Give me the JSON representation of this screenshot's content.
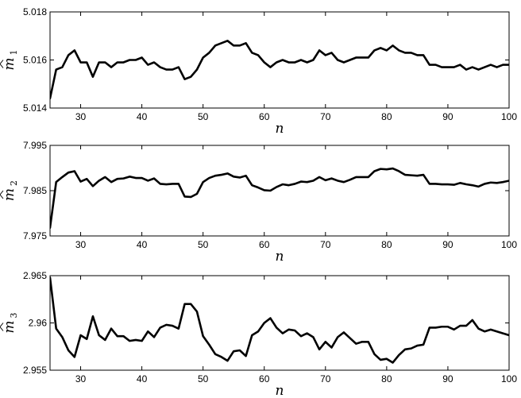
{
  "chart_data": [
    {
      "type": "line",
      "xlabel": "n",
      "ylabel": {
        "base": "m",
        "sub": "1",
        "hat": true
      },
      "xlim": [
        25,
        100
      ],
      "ylim": [
        5.014,
        5.018
      ],
      "xticks": [
        "30",
        "40",
        "50",
        "60",
        "70",
        "80",
        "90",
        "100"
      ],
      "yticks": [
        "5.014",
        "5.016",
        "5.018"
      ],
      "grid": false,
      "x_start": 25,
      "values": [
        5.0144,
        5.0156,
        5.0157,
        5.0162,
        5.0164,
        5.0159,
        5.0159,
        5.0153,
        5.0159,
        5.0159,
        5.0157,
        5.0159,
        5.0159,
        5.016,
        5.016,
        5.0161,
        5.0158,
        5.0159,
        5.0157,
        5.0156,
        5.0156,
        5.0157,
        5.0152,
        5.0153,
        5.0156,
        5.0161,
        5.0163,
        5.0166,
        5.0167,
        5.0168,
        5.0166,
        5.0166,
        5.0167,
        5.0163,
        5.0162,
        5.0159,
        5.0157,
        5.0159,
        5.016,
        5.0159,
        5.0159,
        5.016,
        5.0159,
        5.016,
        5.0164,
        5.0162,
        5.0163,
        5.016,
        5.0159,
        5.016,
        5.0161,
        5.0161,
        5.0161,
        5.0164,
        5.0165,
        5.0164,
        5.0166,
        5.0164,
        5.0163,
        5.0163,
        5.0162,
        5.0162,
        5.0158,
        5.0158,
        5.0157,
        5.0157,
        5.0157,
        5.0158,
        5.0156,
        5.0157,
        5.0156,
        5.0157,
        5.0158,
        5.0157,
        5.0158,
        5.0158,
        5.0157
      ]
    },
    {
      "type": "line",
      "xlabel": "n",
      "ylabel": {
        "base": "m",
        "sub": "2",
        "hat": true
      },
      "xlim": [
        25,
        100
      ],
      "ylim": [
        7.975,
        7.995
      ],
      "xticks": [
        "30",
        "40",
        "50",
        "60",
        "70",
        "80",
        "90",
        "100"
      ],
      "yticks": [
        "7.975",
        "7.985",
        "7.995"
      ],
      "grid": false,
      "x_start": 25,
      "values": [
        7.9768,
        7.9869,
        7.988,
        7.989,
        7.9893,
        7.987,
        7.9876,
        7.986,
        7.9872,
        7.988,
        7.9869,
        7.9876,
        7.9877,
        7.9881,
        7.9878,
        7.9878,
        7.9872,
        7.9877,
        7.9865,
        7.9864,
        7.9865,
        7.9865,
        7.9837,
        7.9836,
        7.9843,
        7.9869,
        7.9878,
        7.9883,
        7.9885,
        7.9888,
        7.9881,
        7.9879,
        7.9883,
        7.9862,
        7.9857,
        7.9851,
        7.985,
        7.9858,
        7.9864,
        7.9862,
        7.9865,
        7.987,
        7.9869,
        7.9872,
        7.988,
        7.9873,
        7.9877,
        7.9872,
        7.9869,
        7.9874,
        7.988,
        7.988,
        7.988,
        7.9893,
        7.9898,
        7.9897,
        7.9899,
        7.9893,
        7.9885,
        7.9884,
        7.9883,
        7.9885,
        7.9865,
        7.9865,
        7.9864,
        7.9864,
        7.9863,
        7.9867,
        7.9864,
        7.9862,
        7.9859,
        7.9865,
        7.9868,
        7.9867,
        7.9869,
        7.9872,
        7.9868
      ]
    },
    {
      "type": "line",
      "xlabel": "n",
      "ylabel": {
        "base": "m",
        "sub": "3",
        "hat": true
      },
      "xlim": [
        25,
        100
      ],
      "ylim": [
        2.955,
        2.965
      ],
      "xticks": [
        "30",
        "40",
        "50",
        "60",
        "70",
        "80",
        "90",
        "100"
      ],
      "yticks": [
        "2.955",
        "2.96",
        "2.965"
      ],
      "grid": false,
      "x_start": 25,
      "values": [
        2.9648,
        2.9594,
        2.9585,
        2.9571,
        2.9564,
        2.9587,
        2.9583,
        2.9607,
        2.9587,
        2.9582,
        2.9594,
        2.9586,
        2.9586,
        2.9581,
        2.9582,
        2.9581,
        2.9591,
        2.9585,
        2.9595,
        2.9598,
        2.9597,
        2.9594,
        2.962,
        2.962,
        2.9612,
        2.9586,
        2.9577,
        2.9567,
        2.9564,
        2.956,
        2.957,
        2.9571,
        2.9565,
        2.9587,
        2.9591,
        2.96,
        2.9605,
        2.9595,
        2.9589,
        2.9593,
        2.9592,
        2.9586,
        2.9589,
        2.9585,
        2.9572,
        2.958,
        2.9574,
        2.9585,
        2.959,
        2.9584,
        2.9578,
        2.958,
        2.958,
        2.9567,
        2.9561,
        2.9562,
        2.9558,
        2.9566,
        2.9572,
        2.9573,
        2.9576,
        2.9577,
        2.9595,
        2.9595,
        2.9596,
        2.9596,
        2.9593,
        2.9597,
        2.9597,
        2.9603,
        2.9594,
        2.9591,
        2.9593,
        2.9591,
        2.9589,
        2.9587,
        2.9593
      ]
    }
  ]
}
